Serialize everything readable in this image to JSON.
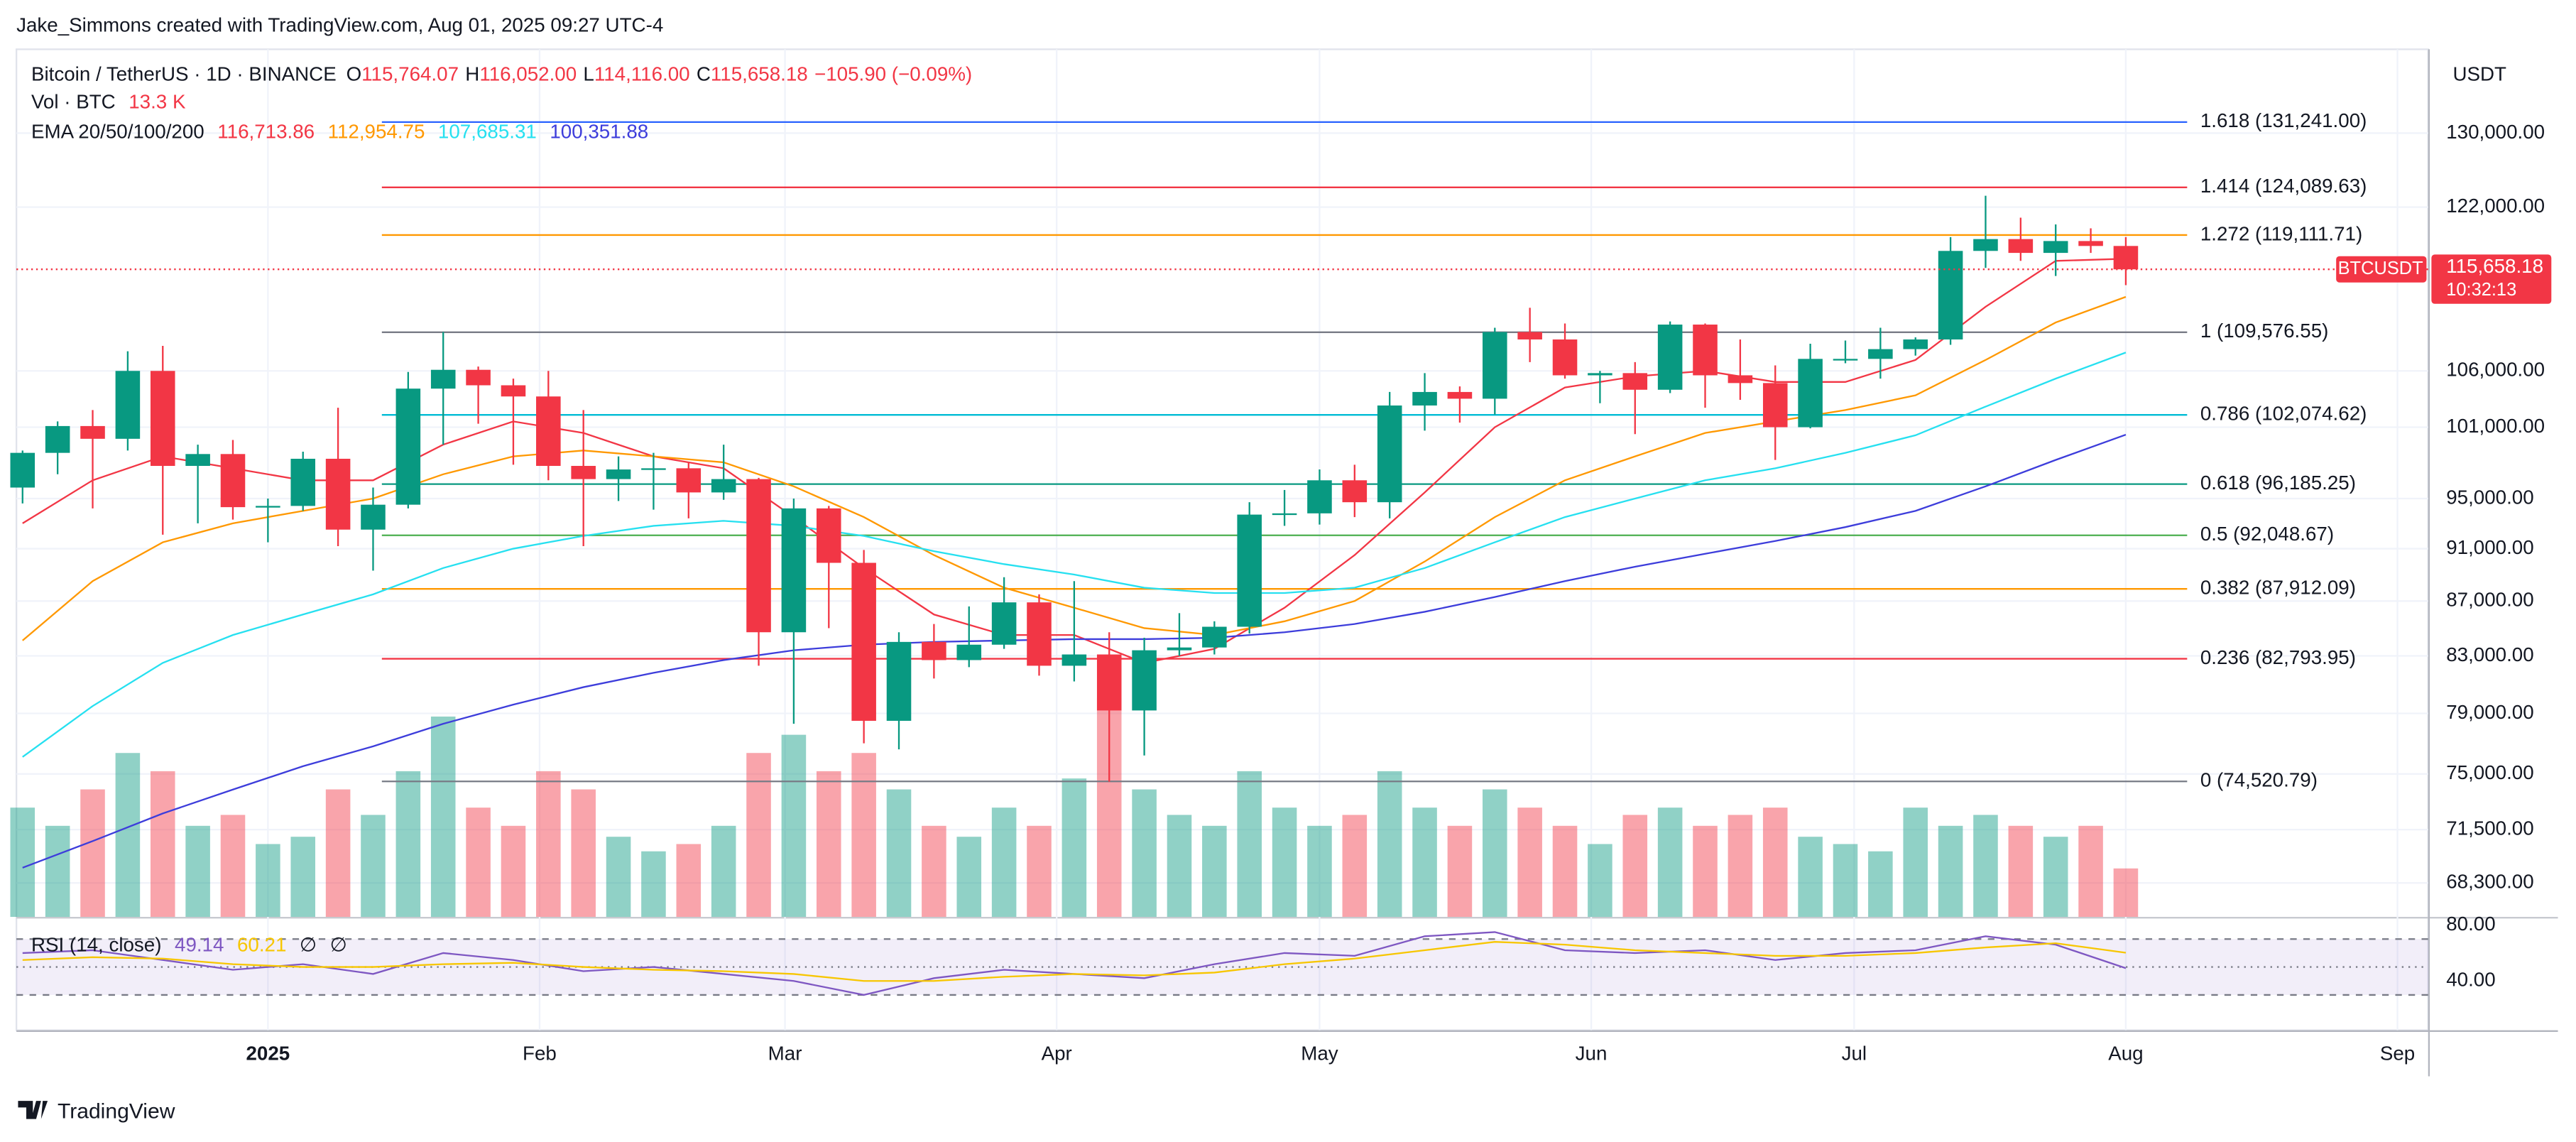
{
  "page": {
    "credit": "Jake_Simmons created with TradingView.com, Aug 01, 2025 09:27 UTC-4",
    "logo": "TradingView",
    "currency": "USDT"
  },
  "chart_data": [
    {
      "type": "candlestick",
      "title": "Bitcoin / TetherUS · 1D · BINANCE",
      "ohlc_legend": [
        {
          "key": "O",
          "value": "115,764.07"
        },
        {
          "key": "H",
          "value": "116,052.00"
        },
        {
          "key": "L",
          "value": "114,116.00"
        },
        {
          "key": "C",
          "value": "115,658.18"
        }
      ],
      "change": "−105.90 (−0.09%)",
      "volume_title": "Vol · BTC",
      "volume_legend": "13.3 K",
      "ema_title": "EMA 20/50/100/200",
      "log_scale": true,
      "grid": true,
      "up_color": "#089981",
      "down_color": "#f23645",
      "xlim": [
        -28.7,
        246.5
      ],
      "xticks": [
        {
          "value": 0,
          "label": "2025"
        },
        {
          "value": 31,
          "label": "Feb"
        },
        {
          "value": 59,
          "label": "Mar"
        },
        {
          "value": 90,
          "label": "Apr"
        },
        {
          "value": 120,
          "label": "May"
        },
        {
          "value": 151,
          "label": "Jun"
        },
        {
          "value": 181,
          "label": "Jul"
        },
        {
          "value": 212,
          "label": "Aug"
        },
        {
          "value": 243,
          "label": "Sep"
        }
      ],
      "ylim": [
        66340,
        139700
      ],
      "yticks": [
        {
          "value": 68300,
          "label": "68,300.00"
        },
        {
          "value": 71500,
          "label": "71,500.00"
        },
        {
          "value": 75000,
          "label": "75,000.00"
        },
        {
          "value": 79000,
          "label": "79,000.00"
        },
        {
          "value": 83000,
          "label": "83,000.00"
        },
        {
          "value": 87000,
          "label": "87,000.00"
        },
        {
          "value": 91000,
          "label": "91,000.00"
        },
        {
          "value": 95000,
          "label": "95,000.00"
        },
        {
          "value": 101000,
          "label": "101,000.00"
        },
        {
          "value": 106000,
          "label": "106,000.00"
        },
        {
          "value": 122000,
          "label": "122,000.00"
        },
        {
          "value": 130000,
          "label": "130,000.00"
        }
      ],
      "x": [
        -28,
        -24,
        -20,
        -16,
        -12,
        -8,
        -4,
        0,
        4,
        8,
        12,
        16,
        20,
        24,
        28,
        32,
        36,
        40,
        44,
        48,
        52,
        56,
        60,
        64,
        68,
        72,
        76,
        80,
        84,
        88,
        92,
        96,
        100,
        104,
        108,
        112,
        116,
        120,
        124,
        128,
        132,
        136,
        140,
        144,
        148,
        152,
        156,
        160,
        164,
        168,
        172,
        176,
        180,
        184,
        188,
        192,
        196,
        200,
        204,
        208,
        212
      ],
      "open": [
        95900,
        98800,
        101100,
        100000,
        106000,
        97700,
        98700,
        94300,
        94400,
        98300,
        92500,
        94500,
        104400,
        106100,
        104700,
        103700,
        97700,
        96600,
        97400,
        97500,
        95500,
        96600,
        84700,
        94200,
        89900,
        78500,
        84000,
        82700,
        83800,
        86900,
        82300,
        83100,
        79200,
        83400,
        83600,
        85100,
        93700,
        93800,
        96500,
        94700,
        102900,
        104100,
        103500,
        109600,
        108900,
        105600,
        105800,
        104300,
        110300,
        105600,
        104900,
        101000,
        107100,
        107100,
        108000,
        108900,
        117500,
        118700,
        117300,
        118500,
        118000
      ],
      "high": [
        99000,
        101500,
        102500,
        107800,
        108300,
        99500,
        99900,
        95000,
        98900,
        102700,
        95900,
        105900,
        109600,
        106400,
        105300,
        106000,
        102500,
        98500,
        98800,
        98000,
        99500,
        96700,
        95000,
        94400,
        90900,
        84700,
        85300,
        86600,
        88800,
        87500,
        88500,
        84700,
        84300,
        86100,
        85500,
        94700,
        95700,
        97400,
        97800,
        104100,
        105800,
        104600,
        110000,
        111900,
        110400,
        106000,
        106800,
        110600,
        110400,
        108900,
        106500,
        108500,
        108800,
        110000,
        109100,
        118900,
        123200,
        120900,
        120200,
        119800,
        118900
      ],
      "low": [
        94600,
        97000,
        94200,
        99000,
        92100,
        93000,
        93300,
        91500,
        94000,
        91200,
        89300,
        94200,
        99500,
        101300,
        97800,
        96500,
        91200,
        94800,
        94100,
        93400,
        94900,
        82300,
        78300,
        85000,
        77000,
        76600,
        81400,
        82200,
        83500,
        81600,
        81200,
        74500,
        76200,
        83000,
        83100,
        84600,
        92800,
        92900,
        93500,
        93400,
        100700,
        101400,
        102100,
        106800,
        105300,
        103100,
        100400,
        104000,
        102700,
        103400,
        98200,
        100900,
        106700,
        105300,
        107400,
        108400,
        115800,
        116500,
        115000,
        117300,
        114100
      ],
      "close": [
        98800,
        101100,
        100000,
        106000,
        97700,
        98700,
        94300,
        94400,
        98300,
        92500,
        94500,
        104400,
        106100,
        104700,
        103700,
        97700,
        96600,
        97400,
        97500,
        95500,
        96600,
        84700,
        94200,
        89900,
        78500,
        84000,
        82700,
        83800,
        86900,
        82300,
        83100,
        79200,
        83400,
        83600,
        85100,
        93700,
        93800,
        96500,
        94700,
        102900,
        104100,
        103500,
        109600,
        108900,
        105600,
        105800,
        104300,
        110300,
        105600,
        104900,
        101000,
        107100,
        107100,
        108000,
        108900,
        117500,
        118700,
        117300,
        118500,
        118000,
        115658.18
      ],
      "volume": [
        30,
        25,
        35,
        45,
        40,
        25,
        28,
        20,
        22,
        35,
        28,
        40,
        55,
        30,
        25,
        40,
        35,
        22,
        18,
        20,
        25,
        45,
        50,
        40,
        45,
        35,
        25,
        22,
        30,
        25,
        38,
        60,
        35,
        28,
        25,
        40,
        30,
        25,
        28,
        40,
        30,
        25,
        35,
        30,
        25,
        20,
        28,
        30,
        25,
        28,
        30,
        22,
        20,
        18,
        30,
        25,
        28,
        25,
        22,
        25,
        13.3
      ],
      "ema_x": [
        -28,
        -20,
        -12,
        -4,
        4,
        12,
        20,
        28,
        36,
        44,
        52,
        60,
        68,
        76,
        84,
        92,
        100,
        108,
        116,
        124,
        132,
        140,
        148,
        156,
        164,
        172,
        180,
        188,
        196,
        204,
        212
      ],
      "ema": [
        {
          "label": "116,713.86",
          "color": "#f23645",
          "values": [
            93000,
            96500,
            98500,
            97500,
            96500,
            96500,
            99500,
            101500,
            100500,
            98500,
            97500,
            93500,
            89500,
            86000,
            84500,
            84500,
            82500,
            83500,
            86500,
            90500,
            95500,
            101000,
            104500,
            105500,
            106000,
            105000,
            105000,
            107000,
            112000,
            116500,
            116713.86
          ]
        },
        {
          "label": "112,954.75",
          "color": "#ff9800",
          "values": [
            84100,
            88500,
            91500,
            93000,
            94000,
            95000,
            97000,
            98500,
            99000,
            98500,
            98000,
            96000,
            93500,
            90500,
            88000,
            86500,
            85000,
            84500,
            85500,
            87000,
            90000,
            93500,
            96500,
            98500,
            100500,
            101500,
            102500,
            103800,
            107000,
            110500,
            112954.75
          ]
        },
        {
          "label": "107,685.31",
          "color": "#26e0f0",
          "values": [
            76100,
            79500,
            82500,
            84500,
            86000,
            87500,
            89500,
            91000,
            92000,
            92800,
            93200,
            92800,
            92000,
            90800,
            89800,
            89000,
            88000,
            87600,
            87600,
            88000,
            89500,
            91500,
            93500,
            95000,
            96500,
            97500,
            98800,
            100300,
            102800,
            105300,
            107685.31
          ]
        },
        {
          "label": "100,351.88",
          "color": "#3d3ddb",
          "values": [
            69200,
            70800,
            72500,
            74000,
            75500,
            76800,
            78300,
            79600,
            80800,
            81800,
            82700,
            83400,
            83800,
            84000,
            84100,
            84200,
            84200,
            84300,
            84700,
            85300,
            86200,
            87300,
            88500,
            89600,
            90600,
            91600,
            92700,
            94000,
            96000,
            98200,
            100351.88
          ]
        }
      ],
      "fib": {
        "start": 13,
        "end": 219,
        "levels": [
          {
            "label": "1.618 (131,241.00)",
            "value": 131241,
            "color": "#2962ff"
          },
          {
            "label": "1.414 (124,089.63)",
            "value": 124089.63,
            "color": "#f23645"
          },
          {
            "label": "1.272 (119,111.71)",
            "value": 119111.71,
            "color": "#ff9800"
          },
          {
            "label": "1 (109,576.55)",
            "value": 109576.55,
            "color": "#787b86"
          },
          {
            "label": "0.786 (102,074.62)",
            "value": 102074.62,
            "color": "#00bcd4"
          },
          {
            "label": "0.618 (96,185.25)",
            "value": 96185.25,
            "color": "#089981"
          },
          {
            "label": "0.5 (92,048.67)",
            "value": 92048.67,
            "color": "#4caf50"
          },
          {
            "label": "0.382 (87,912.09)",
            "value": 87912.09,
            "color": "#ff9800"
          },
          {
            "label": "0.236 (82,793.95)",
            "value": 82793.95,
            "color": "#f23645"
          },
          {
            "label": "0 (74,520.79)",
            "value": 74520.79,
            "color": "#787b86"
          }
        ]
      },
      "last_price": {
        "value": 115658.18,
        "label": "115,658.18"
      },
      "symbol_tag": "BTCUSDT",
      "countdown": "10:32:13"
    },
    {
      "type": "line",
      "title": "RSI (14, close)",
      "ylim": [
        4.7,
        84.7
      ],
      "yticks": [
        {
          "value": 80,
          "label": "80.00"
        },
        {
          "value": 40,
          "label": "40.00"
        }
      ],
      "bands": [
        70,
        50,
        30
      ],
      "x": [
        -28,
        -20,
        -12,
        -4,
        4,
        12,
        20,
        28,
        36,
        44,
        52,
        60,
        68,
        76,
        84,
        92,
        100,
        108,
        116,
        124,
        132,
        140,
        148,
        156,
        164,
        172,
        180,
        188,
        196,
        204,
        212
      ],
      "series": [
        {
          "name": "RSI",
          "label": "49.14",
          "color": "#7e57c2",
          "values": [
            60,
            62,
            55,
            48,
            52,
            45,
            60,
            55,
            47,
            50,
            45,
            40,
            30,
            42,
            48,
            45,
            42,
            52,
            60,
            58,
            72,
            75,
            62,
            60,
            62,
            55,
            60,
            62,
            72,
            66,
            49.14
          ]
        },
        {
          "name": "RSI MA",
          "label": "60.21",
          "color": "#f7c600",
          "values": [
            55,
            57,
            56,
            52,
            50,
            50,
            52,
            53,
            50,
            48,
            47,
            45,
            40,
            40,
            43,
            45,
            44,
            46,
            52,
            56,
            62,
            68,
            66,
            62,
            60,
            58,
            58,
            60,
            64,
            67,
            60.21
          ]
        }
      ],
      "empty_marks": [
        "∅",
        "∅"
      ]
    }
  ]
}
